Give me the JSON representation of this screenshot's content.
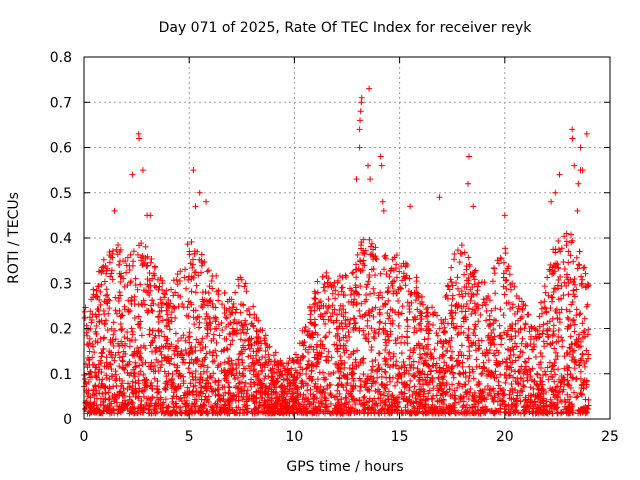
{
  "chart_data": {
    "type": "scatter",
    "title": "Day 071 of 2025, Rate Of TEC Index for receiver reyk",
    "xlabel": "GPS time / hours",
    "ylabel": "ROTI / TECUs",
    "xlim": [
      0,
      25
    ],
    "ylim": [
      0,
      0.8
    ],
    "grid": true,
    "marker": "plus",
    "x_ticks": [
      0,
      5,
      10,
      15,
      20,
      25
    ],
    "y_ticks": [
      0,
      0.1,
      0.2,
      0.3,
      0.4,
      0.5,
      0.6,
      0.7,
      0.8
    ],
    "x_tick_labels": [
      "0",
      "5",
      "10",
      "15",
      "20",
      "25"
    ],
    "y_tick_labels": [
      "0",
      "0.1",
      "0.2",
      "0.3",
      "0.4",
      "0.5",
      "0.6",
      "0.7",
      "0.8"
    ],
    "series_color": "#ff0000",
    "series": [
      {
        "name": "ROTI",
        "envelope": [
          [
            0.0,
            0.25
          ],
          [
            0.5,
            0.3
          ],
          [
            1.0,
            0.37
          ],
          [
            1.5,
            0.4
          ],
          [
            2.0,
            0.35
          ],
          [
            2.5,
            0.42
          ],
          [
            3.0,
            0.38
          ],
          [
            3.5,
            0.33
          ],
          [
            4.0,
            0.28
          ],
          [
            4.5,
            0.33
          ],
          [
            5.0,
            0.4
          ],
          [
            5.5,
            0.38
          ],
          [
            6.0,
            0.36
          ],
          [
            6.5,
            0.3
          ],
          [
            7.0,
            0.27
          ],
          [
            7.5,
            0.33
          ],
          [
            8.0,
            0.26
          ],
          [
            8.5,
            0.2
          ],
          [
            9.0,
            0.15
          ],
          [
            9.5,
            0.14
          ],
          [
            10.0,
            0.13
          ],
          [
            10.5,
            0.22
          ],
          [
            11.0,
            0.3
          ],
          [
            11.5,
            0.33
          ],
          [
            12.0,
            0.3
          ],
          [
            12.5,
            0.35
          ],
          [
            13.0,
            0.4
          ],
          [
            13.5,
            0.4
          ],
          [
            14.0,
            0.38
          ],
          [
            14.5,
            0.4
          ],
          [
            15.0,
            0.35
          ],
          [
            15.5,
            0.34
          ],
          [
            16.0,
            0.3
          ],
          [
            16.5,
            0.25
          ],
          [
            17.0,
            0.22
          ],
          [
            17.5,
            0.36
          ],
          [
            18.0,
            0.39
          ],
          [
            18.5,
            0.34
          ],
          [
            19.0,
            0.3
          ],
          [
            19.5,
            0.34
          ],
          [
            20.0,
            0.38
          ],
          [
            20.5,
            0.3
          ],
          [
            21.0,
            0.25
          ],
          [
            21.5,
            0.22
          ],
          [
            22.0,
            0.35
          ],
          [
            22.5,
            0.4
          ],
          [
            23.0,
            0.42
          ],
          [
            23.5,
            0.38
          ],
          [
            24.0,
            0.3
          ]
        ],
        "peaks": [
          [
            1.45,
            0.46
          ],
          [
            2.3,
            0.54
          ],
          [
            2.6,
            0.63
          ],
          [
            2.62,
            0.62
          ],
          [
            2.8,
            0.55
          ],
          [
            3.0,
            0.45
          ],
          [
            3.15,
            0.45
          ],
          [
            5.2,
            0.55
          ],
          [
            5.3,
            0.47
          ],
          [
            5.5,
            0.5
          ],
          [
            5.8,
            0.48
          ],
          [
            12.95,
            0.53
          ],
          [
            13.1,
            0.6
          ],
          [
            13.1,
            0.64
          ],
          [
            13.12,
            0.66
          ],
          [
            13.15,
            0.68
          ],
          [
            13.18,
            0.7
          ],
          [
            13.2,
            0.71
          ],
          [
            13.55,
            0.73
          ],
          [
            13.5,
            0.56
          ],
          [
            13.6,
            0.53
          ],
          [
            14.1,
            0.58
          ],
          [
            14.15,
            0.56
          ],
          [
            14.2,
            0.48
          ],
          [
            14.25,
            0.46
          ],
          [
            15.5,
            0.47
          ],
          [
            16.9,
            0.49
          ],
          [
            18.3,
            0.58
          ],
          [
            18.25,
            0.52
          ],
          [
            18.5,
            0.47
          ],
          [
            20.0,
            0.45
          ],
          [
            22.2,
            0.48
          ],
          [
            22.4,
            0.5
          ],
          [
            22.6,
            0.54
          ],
          [
            23.2,
            0.64
          ],
          [
            23.22,
            0.62
          ],
          [
            23.3,
            0.56
          ],
          [
            23.6,
            0.6
          ],
          [
            23.6,
            0.55
          ],
          [
            23.7,
            0.55
          ],
          [
            23.9,
            0.63
          ],
          [
            23.5,
            0.52
          ],
          [
            23.45,
            0.46
          ]
        ]
      }
    ]
  }
}
